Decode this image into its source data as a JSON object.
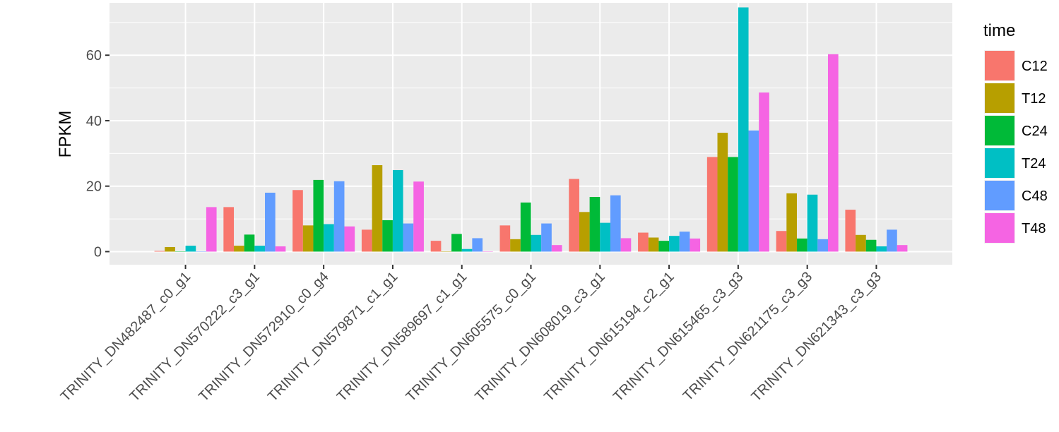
{
  "chart_data": {
    "type": "bar",
    "xlabel": "",
    "ylabel": "FPKM",
    "ylim": [
      -4,
      76
    ],
    "yticks": [
      0,
      20,
      40,
      60
    ],
    "grid": true,
    "legend_position": "right",
    "legend_title": "time",
    "categories": [
      "TRINITY_DN482487_c0_g1",
      "TRINITY_DN570222_c3_g1",
      "TRINITY_DN572910_c0_g4",
      "TRINITY_DN579871_c1_g1",
      "TRINITY_DN589697_c1_g1",
      "TRINITY_DN605575_c0_g1",
      "TRINITY_DN608019_c3_g1",
      "TRINITY_DN615194_c2_g1",
      "TRINITY_DN615465_c3_g3",
      "TRINITY_DN621175_c3_g3",
      "TRINITY_DN621343_c3_g3"
    ],
    "series": [
      {
        "name": "C12",
        "color": "#F8766D",
        "values": [
          0.2,
          13.6,
          18.8,
          6.7,
          3.3,
          8.0,
          22.2,
          5.8,
          28.9,
          6.3,
          12.8
        ]
      },
      {
        "name": "T12",
        "color": "#B79F00",
        "values": [
          1.4,
          1.8,
          8.0,
          26.4,
          0.1,
          3.8,
          12.1,
          4.3,
          36.3,
          17.8,
          5.1
        ]
      },
      {
        "name": "C24",
        "color": "#00BA38",
        "values": [
          0.1,
          5.2,
          21.9,
          9.6,
          5.4,
          15.0,
          16.7,
          3.3,
          28.9,
          4.0,
          3.6
        ]
      },
      {
        "name": "T24",
        "color": "#00BFC4",
        "values": [
          1.8,
          1.8,
          8.4,
          24.9,
          0.8,
          5.1,
          8.8,
          4.8,
          74.6,
          17.4,
          1.6
        ]
      },
      {
        "name": "C48",
        "color": "#619CFF",
        "values": [
          0.1,
          18.0,
          21.5,
          8.6,
          4.1,
          8.6,
          17.2,
          6.1,
          37.0,
          3.8,
          6.7
        ]
      },
      {
        "name": "T48",
        "color": "#F564E3",
        "values": [
          13.6,
          1.6,
          7.7,
          21.4,
          0.1,
          2.0,
          4.1,
          4.0,
          48.6,
          60.3,
          2.0
        ]
      }
    ]
  }
}
